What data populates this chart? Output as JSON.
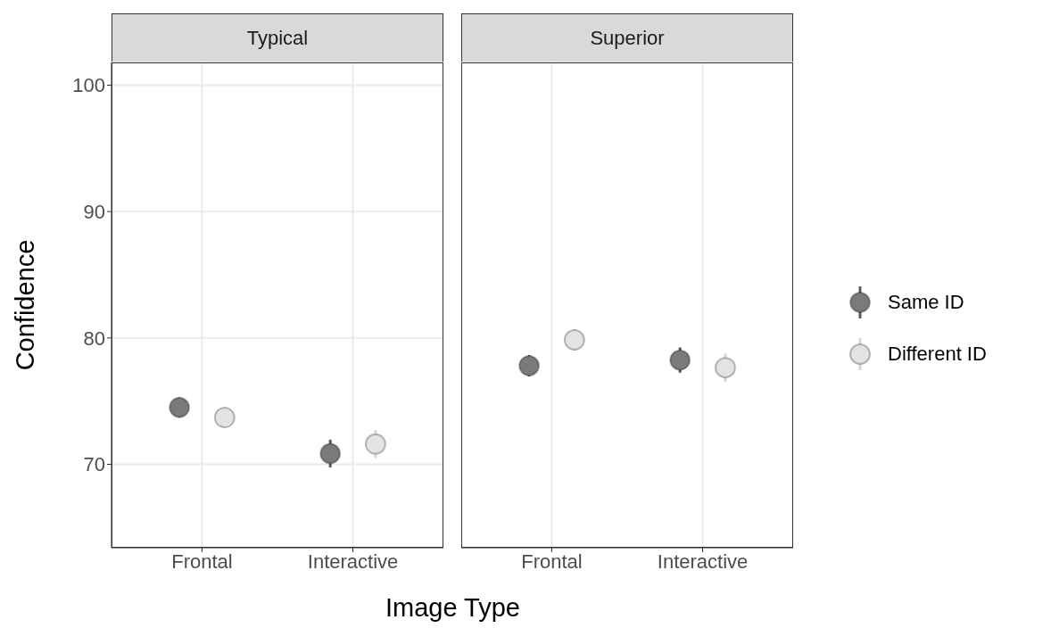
{
  "chart_data": [
    {
      "type": "scatter",
      "title": "Typical",
      "xlabel": "Image Type",
      "ylabel": "Confidence",
      "categories": [
        "Frontal",
        "Interactive"
      ],
      "series": [
        {
          "color": "#7a7a7a",
          "values": [
            74.5,
            70.85
          ],
          "errors": [
            0.8,
            1.1
          ]
        },
        {
          "color": "#e3e3e3",
          "values": [
            73.7,
            71.6
          ],
          "errors": [
            0.8,
            1.1
          ]
        }
      ],
      "ylim": [
        63.4,
        101.8
      ],
      "yticks": [
        70,
        80,
        90,
        100
      ],
      "grid": true,
      "marker": "circle"
    },
    {
      "type": "scatter",
      "title": "Superior",
      "categories": [
        "Frontal",
        "Interactive"
      ],
      "series": [
        {
          "name": "Same ID",
          "color": "#7a7a7a",
          "values": [
            77.8,
            78.25
          ],
          "errors": [
            0.85,
            1.0
          ]
        },
        {
          "name": "Different ID",
          "color": "#e3e3e3",
          "values": [
            79.85,
            77.65
          ],
          "errors": [
            0.85,
            1.1
          ]
        }
      ],
      "ylim": [
        63.4,
        101.8
      ],
      "yticks": [
        70,
        80,
        90,
        100
      ],
      "grid": true,
      "marker": "circle",
      "legend": "right",
      "tick_labels": "x"
    }
  ]
}
